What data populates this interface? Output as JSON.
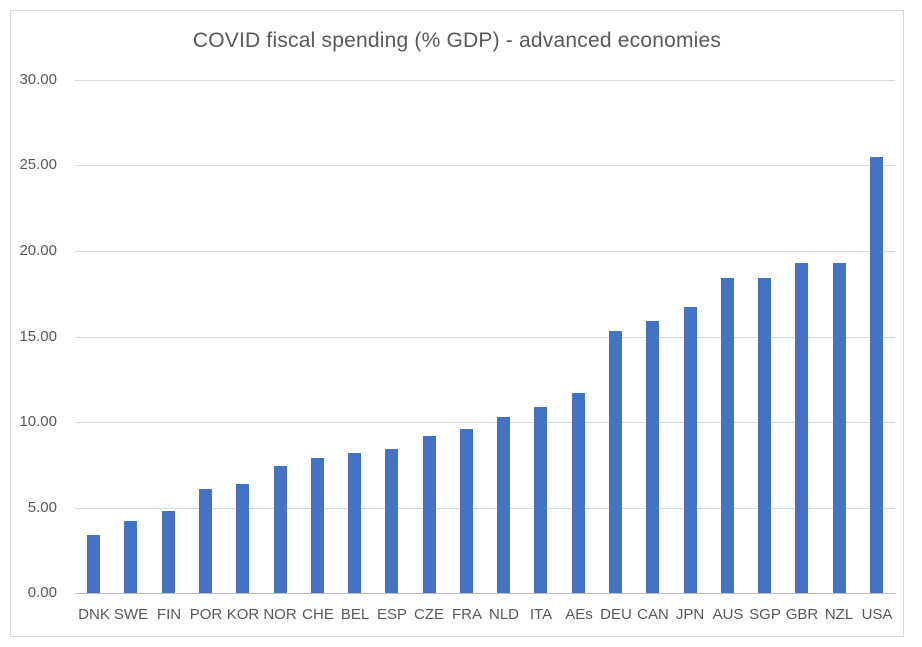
{
  "chart_data": {
    "type": "bar",
    "title": "COVID fiscal spending (% GDP) - advanced economies",
    "categories": [
      "DNK",
      "SWE",
      "FIN",
      "POR",
      "KOR",
      "NOR",
      "CHE",
      "BEL",
      "ESP",
      "CZE",
      "FRA",
      "NLD",
      "ITA",
      "AEs",
      "DEU",
      "CAN",
      "JPN",
      "AUS",
      "SGP",
      "GBR",
      "NZL",
      "USA"
    ],
    "values": [
      3.4,
      4.2,
      4.8,
      6.1,
      6.4,
      7.4,
      7.9,
      8.2,
      8.4,
      9.2,
      9.6,
      10.3,
      10.9,
      11.7,
      15.3,
      15.9,
      16.7,
      18.4,
      18.4,
      19.3,
      19.3,
      25.5
    ],
    "xlabel": "",
    "ylabel": "",
    "ylim": [
      0,
      30
    ],
    "ytick_step": 5,
    "ytick_labels": [
      "0.00",
      "5.00",
      "10.00",
      "15.00",
      "20.00",
      "25.00",
      "30.00"
    ],
    "grid": true,
    "legend": false,
    "bar_color": "#4472C4",
    "colors": {
      "title_text": "#595959",
      "tick_text": "#595959",
      "gridline": "#D9D9D9",
      "axis_line": "#BFBFBF",
      "frame_border": "#D9D9D9",
      "background": "#FFFFFF"
    }
  }
}
